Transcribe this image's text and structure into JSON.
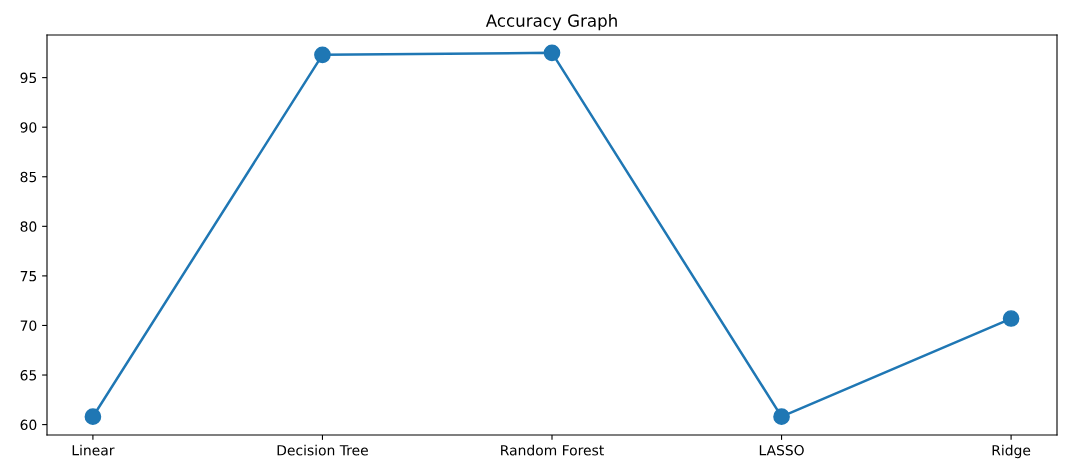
{
  "chart_data": {
    "type": "line",
    "title": "Accuracy Graph",
    "categories": [
      "Linear",
      "Decision Tree",
      "Random Forest",
      "LASSO",
      "Ridge"
    ],
    "series": [
      {
        "color": "#1f77b4",
        "values": [
          60.8,
          97.3,
          97.5,
          60.8,
          70.7
        ]
      }
    ],
    "ylim": [
      58.95,
      99.3
    ],
    "yticks": [
      60,
      65,
      70,
      75,
      80,
      85,
      90,
      95
    ],
    "marker": "circle",
    "line_style": "solid",
    "grid": false,
    "legend": false
  }
}
